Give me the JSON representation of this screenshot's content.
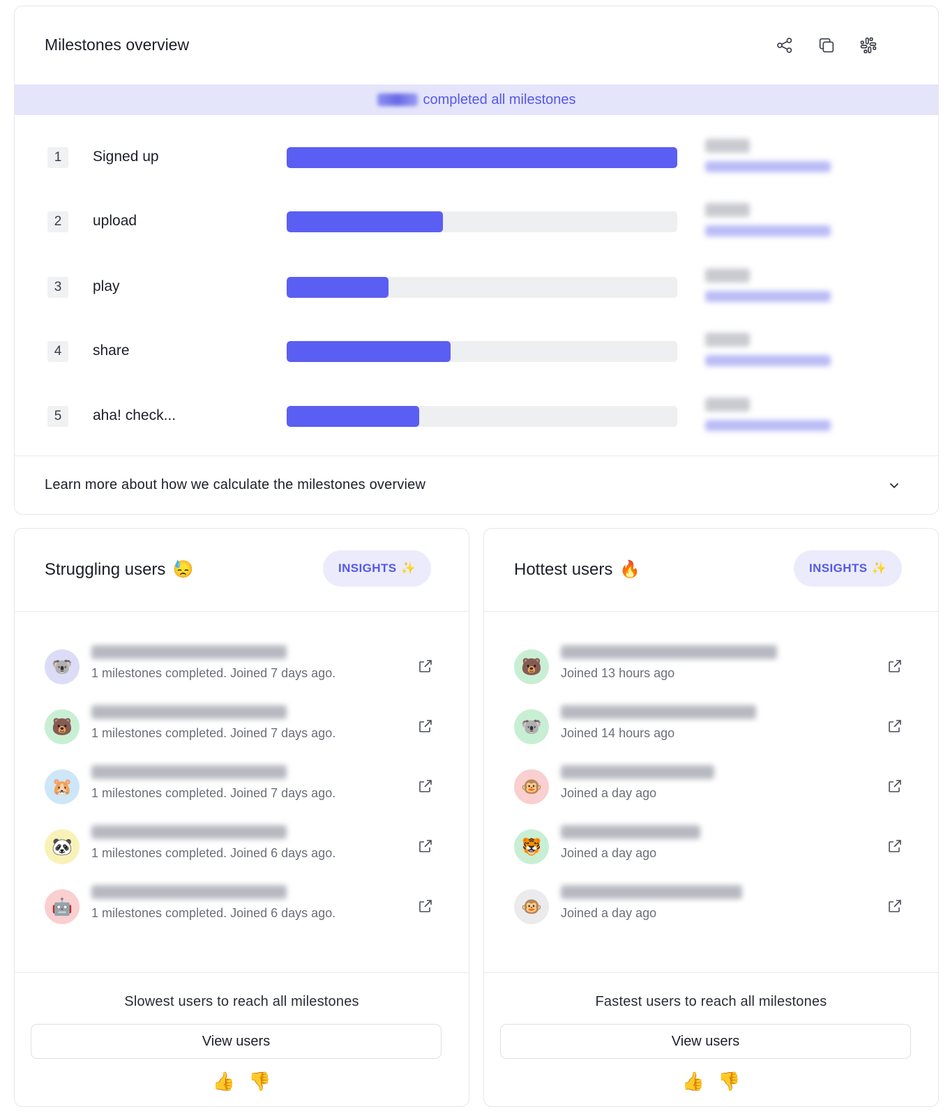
{
  "milestones": {
    "title": "Milestones overview",
    "header_icons": [
      "share-icon",
      "copy-icon",
      "slack-icon"
    ],
    "banner_text": "completed all milestones",
    "rows": [
      {
        "num": "1",
        "label": "Signed up",
        "progress": 1.0
      },
      {
        "num": "2",
        "label": "upload",
        "progress": 0.4
      },
      {
        "num": "3",
        "label": "play",
        "progress": 0.26
      },
      {
        "num": "4",
        "label": "share",
        "progress": 0.42
      },
      {
        "num": "5",
        "label": "aha! check...",
        "progress": 0.34
      }
    ],
    "bar_color": "#5b5ef2",
    "footer_text": "Learn more about how we calculate the milestones overview"
  },
  "struggling": {
    "title": "Struggling users",
    "emoji": "😓",
    "insights_label": "INSIGHTS",
    "users": [
      {
        "avatar": "🐨",
        "bg": "#dcdcf7",
        "sub": "1 milestones completed. Joined 7 days ago."
      },
      {
        "avatar": "🐻",
        "bg": "#c8efd4",
        "sub": "1 milestones completed. Joined 7 days ago."
      },
      {
        "avatar": "🐹",
        "bg": "#cde7f8",
        "sub": "1 milestones completed. Joined 7 days ago."
      },
      {
        "avatar": "🐼",
        "bg": "#f8f2b8",
        "sub": "1 milestones completed. Joined 6 days ago."
      },
      {
        "avatar": "🤖",
        "bg": "#f9cfcf",
        "sub": "1 milestones completed. Joined 6 days ago."
      }
    ],
    "footer_text": "Slowest users to reach all milestones",
    "button_label": "View users",
    "thumb_up": "👍",
    "thumb_down": "👎"
  },
  "hottest": {
    "title": "Hottest users",
    "emoji": "🔥",
    "insights_label": "INSIGHTS",
    "users": [
      {
        "avatar": "🐻",
        "bg": "#c8efd4",
        "sub": "Joined 13 hours ago"
      },
      {
        "avatar": "🐨",
        "bg": "#c8efd4",
        "sub": "Joined 14 hours ago"
      },
      {
        "avatar": "🐵",
        "bg": "#f9cfcf",
        "sub": "Joined a day ago"
      },
      {
        "avatar": "🐯",
        "bg": "#c8efd4",
        "sub": "Joined a day ago"
      },
      {
        "avatar": "🐵",
        "bg": "#ebebee",
        "sub": "Joined a day ago"
      }
    ],
    "footer_text": "Fastest users to reach all milestones",
    "button_label": "View users",
    "thumb_up": "👍",
    "thumb_down": "👎"
  }
}
